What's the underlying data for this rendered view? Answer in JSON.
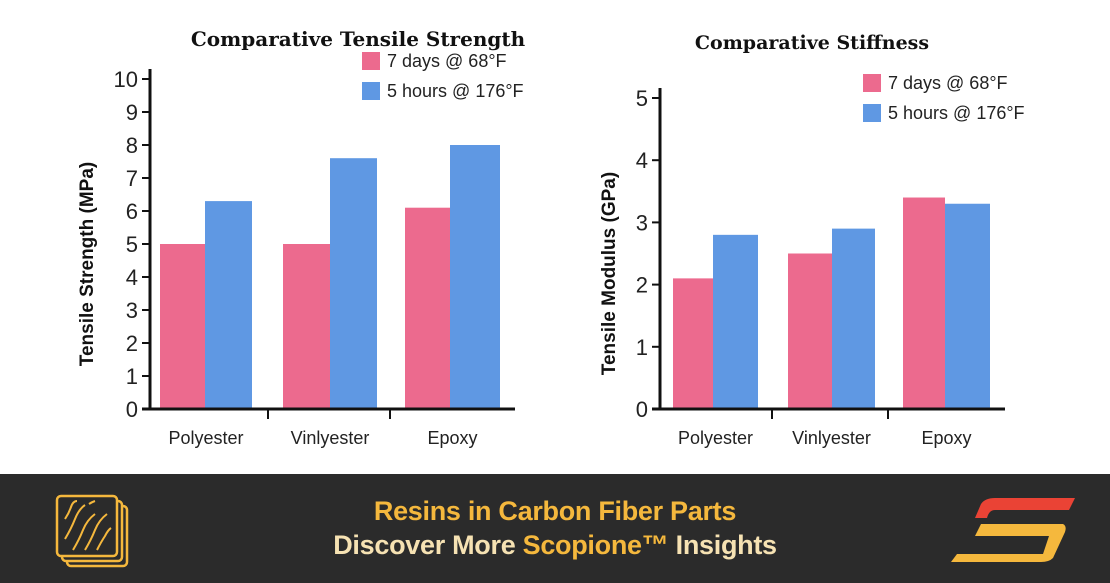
{
  "chart_data": [
    {
      "type": "bar",
      "title": "Comparative Tensile Strength",
      "ylabel": "Tensile Strength (MPa)",
      "xlabel": "",
      "ylim": [
        0,
        10
      ],
      "yticks": [
        "0",
        "1",
        "2",
        "3",
        "4",
        "5",
        "6",
        "7",
        "8",
        "9",
        "10"
      ],
      "categories": [
        "Polyester",
        "Vinlyester",
        "Epoxy"
      ],
      "series": [
        {
          "name": "7 days @ 68°F",
          "color": "#ec6a8e",
          "values": [
            5.0,
            5.0,
            6.1
          ]
        },
        {
          "name": "5 hours @ 176°F",
          "color": "#5f98e3",
          "values": [
            6.3,
            7.6,
            8.0
          ]
        }
      ],
      "legend": "top-right",
      "grid": false
    },
    {
      "type": "bar",
      "title": "Comparative Stiffness",
      "ylabel": "Tensile Modulus (GPa)",
      "xlabel": "",
      "ylim": [
        0,
        5
      ],
      "yticks": [
        "0",
        "1",
        "2",
        "3",
        "4",
        "5"
      ],
      "categories": [
        "Polyester",
        "Vinlyester",
        "Epoxy"
      ],
      "series": [
        {
          "name": "7 days @ 68°F",
          "color": "#ec6a8e",
          "values": [
            2.1,
            2.5,
            3.4
          ]
        },
        {
          "name": "5 hours @ 176°F",
          "color": "#5f98e3",
          "values": [
            2.8,
            2.9,
            3.3
          ]
        }
      ],
      "legend": "top-right",
      "grid": false
    }
  ],
  "banner": {
    "line1": "Resins in Carbon Fiber Parts",
    "line2_a": "Discover More ",
    "line2_b": "Scopione™",
    "line2_c": " Insights",
    "bg": "#2b2b2b",
    "accent": "#f5b83d",
    "icons": [
      "layers-icon",
      "scopione-logo-icon"
    ]
  }
}
